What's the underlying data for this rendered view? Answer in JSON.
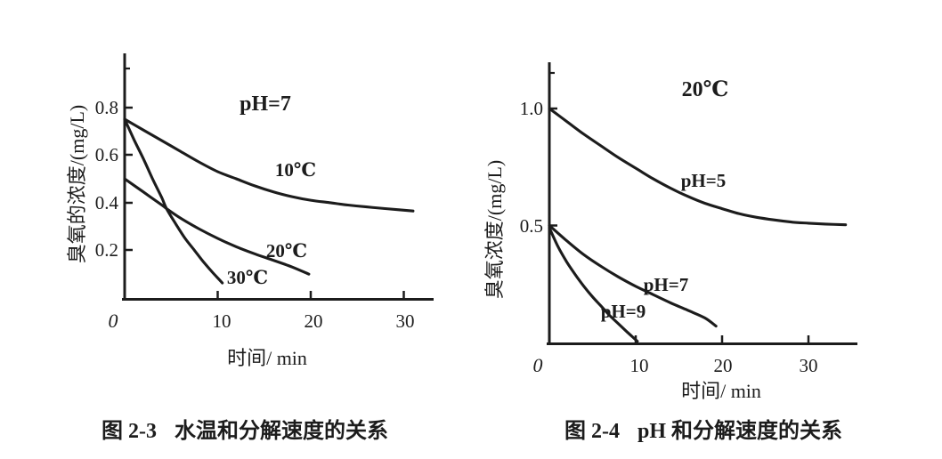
{
  "page": {
    "background": "#ffffff",
    "ink": "#1c1c1c"
  },
  "chart_data": [
    {
      "type": "line",
      "caption_label": "图 2-3",
      "caption_title": "水温和分解速度的关系",
      "annotation": "pH=7",
      "xlabel": "时间/ min",
      "ylabel": "臭氧的浓度/(mg/L)",
      "xlim": [
        0,
        33
      ],
      "ylim": [
        0,
        1.0
      ],
      "xtick_values": [
        10,
        20,
        30
      ],
      "xtick_labels": [
        "10",
        "20",
        "30"
      ],
      "ytick_values": [
        0.8,
        0.6,
        0.4,
        0.2
      ],
      "ytick_labels": [
        "0.8",
        "0.6",
        "0.4",
        "0.2"
      ],
      "origin_label": "0",
      "grid": false,
      "legend_position": "inline-labels",
      "series": [
        {
          "name": "10℃",
          "points": [
            [
              0,
              0.75
            ],
            [
              2,
              0.705
            ],
            [
              4,
              0.66
            ],
            [
              6,
              0.615
            ],
            [
              8,
              0.57
            ],
            [
              10,
              0.53
            ],
            [
              12,
              0.5
            ],
            [
              14,
              0.47
            ],
            [
              16,
              0.445
            ],
            [
              18,
              0.425
            ],
            [
              20,
              0.41
            ],
            [
              22,
              0.4
            ],
            [
              24,
              0.39
            ],
            [
              26,
              0.382
            ],
            [
              28,
              0.375
            ],
            [
              31,
              0.365
            ]
          ]
        },
        {
          "name": "20℃",
          "points": [
            [
              0,
              0.5
            ],
            [
              2,
              0.445
            ],
            [
              4,
              0.39
            ],
            [
              4.5,
              0.375
            ],
            [
              6,
              0.335
            ],
            [
              8,
              0.29
            ],
            [
              10,
              0.25
            ],
            [
              12,
              0.215
            ],
            [
              14,
              0.185
            ],
            [
              16,
              0.158
            ],
            [
              18,
              0.13
            ],
            [
              19.8,
              0.1
            ]
          ]
        },
        {
          "name": "30℃",
          "points": [
            [
              0,
              0.75
            ],
            [
              1,
              0.665
            ],
            [
              2,
              0.585
            ],
            [
              3,
              0.5
            ],
            [
              4,
              0.42
            ],
            [
              4.5,
              0.375
            ],
            [
              5.5,
              0.31
            ],
            [
              6.5,
              0.25
            ],
            [
              7.5,
              0.2
            ],
            [
              8.5,
              0.15
            ],
            [
              9.5,
              0.105
            ],
            [
              10.5,
              0.063
            ]
          ]
        }
      ]
    },
    {
      "type": "line",
      "caption_label": "图 2-4",
      "caption_title": "pH 和分解速度的关系",
      "annotation": "20℃",
      "xlabel": "时间/ min",
      "ylabel": "臭氧浓度/(mg/L)",
      "xlim": [
        0,
        35.5
      ],
      "ylim": [
        0,
        1.15
      ],
      "xtick_values": [
        10,
        20,
        30
      ],
      "xtick_labels": [
        "10",
        "20",
        "30"
      ],
      "ytick_values": [
        1.0,
        0.5
      ],
      "ytick_labels": [
        "1.0",
        "0.5"
      ],
      "origin_label": "0",
      "grid": false,
      "legend_position": "inline-labels",
      "series": [
        {
          "name": "pH=5",
          "points": [
            [
              0,
              1.0
            ],
            [
              2,
              0.945
            ],
            [
              4,
              0.89
            ],
            [
              6,
              0.84
            ],
            [
              8,
              0.79
            ],
            [
              10,
              0.745
            ],
            [
              12,
              0.7
            ],
            [
              14,
              0.66
            ],
            [
              16,
              0.625
            ],
            [
              18,
              0.595
            ],
            [
              20,
              0.572
            ],
            [
              22,
              0.55
            ],
            [
              24,
              0.535
            ],
            [
              26,
              0.524
            ],
            [
              28,
              0.515
            ],
            [
              30,
              0.51
            ],
            [
              32,
              0.506
            ],
            [
              34.3,
              0.503
            ]
          ]
        },
        {
          "name": "pH=7",
          "points": [
            [
              0,
              0.5
            ],
            [
              2,
              0.435
            ],
            [
              4,
              0.375
            ],
            [
              6,
              0.325
            ],
            [
              8,
              0.28
            ],
            [
              10,
              0.24
            ],
            [
              12,
              0.205
            ],
            [
              14,
              0.17
            ],
            [
              16,
              0.138
            ],
            [
              18,
              0.105
            ],
            [
              19.3,
              0.07
            ]
          ]
        },
        {
          "name": "pH=9",
          "points": [
            [
              0,
              0.49
            ],
            [
              1,
              0.41
            ],
            [
              2,
              0.345
            ],
            [
              3,
              0.29
            ],
            [
              4,
              0.24
            ],
            [
              5,
              0.195
            ],
            [
              6,
              0.155
            ],
            [
              7,
              0.115
            ],
            [
              8,
              0.08
            ],
            [
              9,
              0.045
            ],
            [
              10.2,
              0.005
            ]
          ]
        }
      ]
    }
  ]
}
